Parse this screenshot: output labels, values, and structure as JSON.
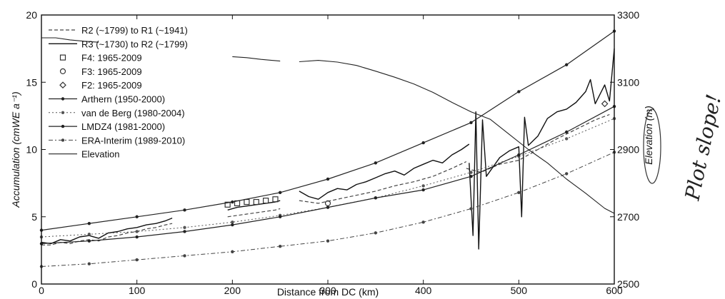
{
  "chart_data": {
    "type": "line",
    "xlabel": "Distance from DC (km)",
    "ylabel_left": "Accumulation (cmWE a⁻¹)",
    "ylabel_right": "Elevation (m)",
    "xlim": [
      0,
      600
    ],
    "ylim_left": [
      0,
      20
    ],
    "ylim_right": [
      2500,
      3300
    ],
    "x_ticks": [
      0,
      100,
      200,
      300,
      400,
      500,
      600
    ],
    "y_left_ticks": [
      0,
      5,
      10,
      15,
      20
    ],
    "y_right_ticks": [
      2500,
      2700,
      2900,
      3100,
      3300
    ],
    "grid": false,
    "legend_position": "top-left",
    "annotation": "Plot slope!",
    "series": [
      {
        "name": "R2 (~1799) to R1 (~1941)",
        "style": "dashed",
        "axis": "left",
        "segments": [
          {
            "x": [
              0,
              10,
              20,
              30,
              40,
              50,
              60,
              70,
              80,
              90,
              100,
              110,
              120,
              130,
              137
            ],
            "y": [
              2.9,
              2.9,
              3.1,
              3.0,
              3.2,
              3.3,
              3.2,
              3.5,
              3.6,
              3.8,
              3.9,
              4.1,
              4.2,
              4.4,
              4.5
            ]
          },
          {
            "x": [
              195,
              205,
              215,
              225,
              235,
              245,
              250
            ],
            "y": [
              5.0,
              5.1,
              5.2,
              5.3,
              5.4,
              5.5,
              5.6
            ]
          },
          {
            "x": [
              270,
              290,
              310,
              330,
              350,
              370,
              390,
              410,
              430,
              445
            ],
            "y": [
              6.2,
              6.0,
              6.3,
              6.6,
              6.9,
              7.3,
              7.6,
              8.0,
              8.6,
              9.1
            ]
          },
          {
            "x": [
              445,
              460,
              480,
              500,
              520,
              540,
              560,
              580,
              595
            ],
            "y": [
              8.6,
              8.3,
              8.9,
              9.2,
              10.0,
              10.8,
              11.5,
              12.2,
              12.6
            ]
          }
        ]
      },
      {
        "name": "R3 (~1730) to R2 (~1799)",
        "style": "solid-noisy",
        "axis": "left",
        "segments": [
          {
            "x": [
              0,
              10,
              20,
              30,
              40,
              50,
              60,
              70,
              80,
              90,
              100,
              110,
              120,
              130,
              137
            ],
            "y": [
              3.1,
              3.0,
              3.3,
              3.2,
              3.5,
              3.6,
              3.4,
              3.8,
              3.9,
              4.1,
              4.2,
              4.4,
              4.5,
              4.7,
              4.9
            ]
          },
          {
            "x": [
              195,
              205,
              215,
              225,
              235,
              245,
              250
            ],
            "y": [
              5.5,
              5.7,
              5.8,
              5.9,
              6.0,
              6.1,
              6.2
            ]
          },
          {
            "x": [
              270,
              280,
              290,
              300,
              310,
              320,
              330,
              340,
              350,
              360,
              370,
              380,
              390,
              400,
              410,
              420,
              430,
              440,
              448
            ],
            "y": [
              6.9,
              6.5,
              6.3,
              6.8,
              7.1,
              7.0,
              7.4,
              7.6,
              7.9,
              8.2,
              8.4,
              8.1,
              8.6,
              8.9,
              9.2,
              9.0,
              9.6,
              10.0,
              10.4
            ]
          },
          {
            "x": [
              448,
              452,
              455,
              458,
              462,
              466,
              470,
              480,
              490,
              500,
              503,
              506,
              510,
              520,
              530,
              540,
              550,
              560,
              570,
              575,
              580,
              590,
              595,
              600
            ],
            "y": [
              9.0,
              3.6,
              12.8,
              2.6,
              12.2,
              8.0,
              8.4,
              9.4,
              9.9,
              10.2,
              5.0,
              12.4,
              10.3,
              11.0,
              12.3,
              12.8,
              13.0,
              13.5,
              14.3,
              15.2,
              13.4,
              14.8,
              13.6,
              17.5
            ]
          }
        ]
      },
      {
        "name": "F4: 1965-2009",
        "style": "square-markers",
        "axis": "left",
        "segments": [
          {
            "x": [
              195,
              205,
              215,
              225,
              235,
              245
            ],
            "y": [
              5.9,
              6.0,
              6.1,
              6.1,
              6.2,
              6.3
            ]
          }
        ]
      },
      {
        "name": "F3: 1965-2009",
        "style": "circle-markers",
        "axis": "left",
        "segments": [
          {
            "x": [
              300
            ],
            "y": [
              6.0
            ]
          }
        ]
      },
      {
        "name": "F2: 1965-2009",
        "style": "diamond-markers",
        "axis": "left",
        "segments": [
          {
            "x": [
              590
            ],
            "y": [
              13.4
            ]
          }
        ]
      },
      {
        "name": "Arthern (1950-2000)",
        "style": "solid-dots",
        "axis": "left",
        "segments": [
          {
            "x": [
              0,
              50,
              100,
              150,
              200,
              250,
              300,
              350,
              400,
              450,
              500,
              550,
              600
            ],
            "y": [
              4.0,
              4.5,
              5.0,
              5.5,
              6.1,
              6.8,
              7.8,
              9.0,
              10.5,
              12.0,
              14.3,
              16.3,
              18.8
            ]
          }
        ]
      },
      {
        "name": "van de Berg (1980-2004)",
        "style": "dotted-dots",
        "axis": "left",
        "segments": [
          {
            "x": [
              0,
              50,
              100,
              150,
              200,
              250,
              300,
              350,
              400,
              450,
              500,
              550,
              600
            ],
            "y": [
              3.5,
              3.7,
              3.9,
              4.2,
              4.6,
              5.1,
              5.7,
              6.4,
              7.3,
              8.3,
              9.5,
              10.8,
              12.3
            ]
          }
        ]
      },
      {
        "name": "LMDZ4 (1981-2000)",
        "style": "solid-dots",
        "axis": "left",
        "segments": [
          {
            "x": [
              0,
              50,
              100,
              150,
              200,
              250,
              300,
              350,
              400,
              450,
              500,
              550,
              600
            ],
            "y": [
              3.0,
              3.2,
              3.5,
              3.9,
              4.4,
              5.0,
              5.7,
              6.4,
              7.0,
              8.0,
              9.6,
              11.3,
              13.2
            ]
          }
        ]
      },
      {
        "name": "ERA-Interim (1989-2010)",
        "style": "dashdot-dots",
        "axis": "left",
        "segments": [
          {
            "x": [
              0,
              50,
              100,
              150,
              200,
              250,
              300,
              350,
              400,
              450,
              500,
              550,
              600
            ],
            "y": [
              1.3,
              1.5,
              1.8,
              2.1,
              2.4,
              2.8,
              3.2,
              3.8,
              4.6,
              5.6,
              6.8,
              8.2,
              9.8
            ]
          }
        ]
      },
      {
        "name": "Elevation",
        "style": "solid-thin",
        "axis": "right",
        "segments": [
          {
            "x": [
              0,
              15,
              30,
              45,
              60
            ],
            "y": [
              3232,
              3232,
              3226,
              3222,
              3219
            ]
          },
          {
            "x": [
              200,
              215,
              230,
              250
            ],
            "y": [
              3176,
              3173,
              3168,
              3163
            ]
          },
          {
            "x": [
              270,
              290,
              310,
              330,
              350,
              370,
              390,
              410,
              430,
              450,
              470,
              490,
              510,
              530,
              550,
              570,
              590,
              600
            ],
            "y": [
              3161,
              3165,
              3160,
              3150,
              3133,
              3115,
              3095,
              3070,
              3040,
              3012,
              2990,
              2945,
              2900,
              2860,
              2812,
              2770,
              2725,
              2710
            ]
          }
        ]
      }
    ]
  }
}
